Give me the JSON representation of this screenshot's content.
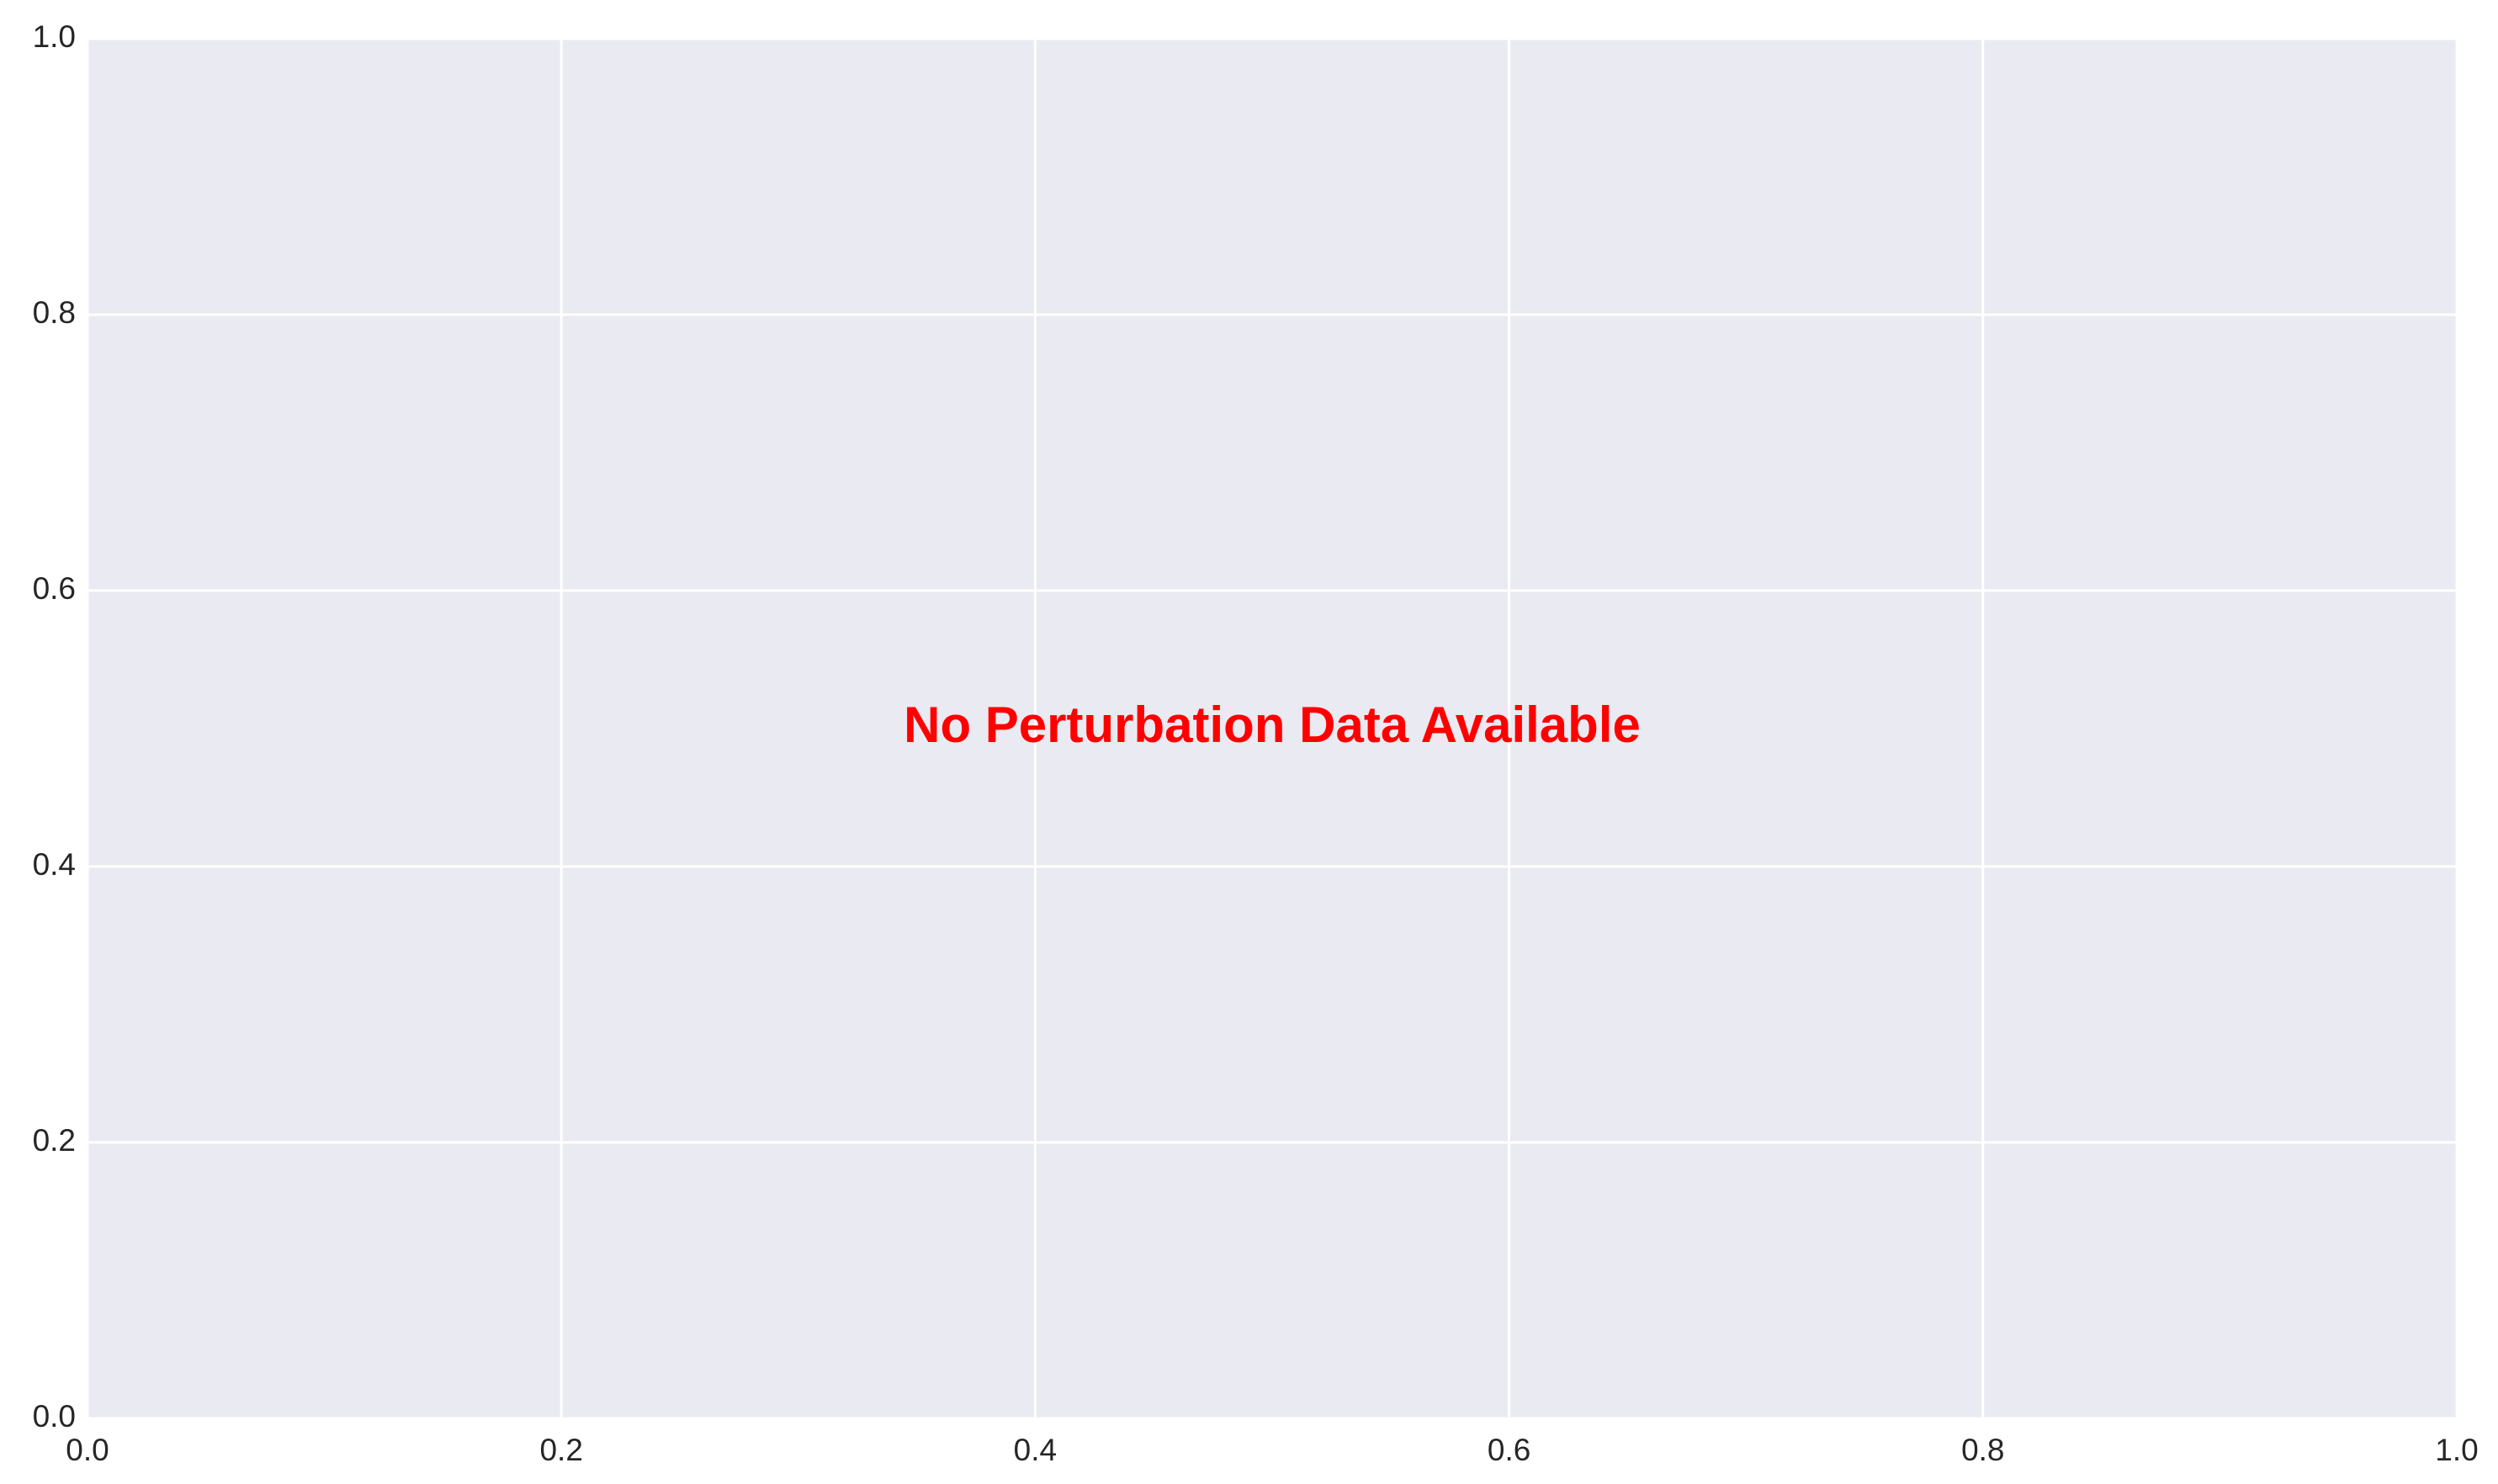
{
  "chart_data": {
    "type": "scatter",
    "title": "",
    "xlabel": "",
    "ylabel": "",
    "xlim": [
      0.0,
      1.0
    ],
    "ylim": [
      0.0,
      1.0
    ],
    "x_ticks": [
      "0.0",
      "0.2",
      "0.4",
      "0.6",
      "0.8",
      "1.0"
    ],
    "y_ticks": [
      "0.0",
      "0.2",
      "0.4",
      "0.6",
      "0.8",
      "1.0"
    ],
    "grid": true,
    "series": [],
    "annotation": {
      "text": "No Perturbation Data Available",
      "x": 0.5,
      "y": 0.5
    },
    "colors": {
      "plot_background": "#eaeaf2",
      "grid": "#ffffff",
      "tick_text": "#262626",
      "annotation": "#ff0000"
    }
  }
}
